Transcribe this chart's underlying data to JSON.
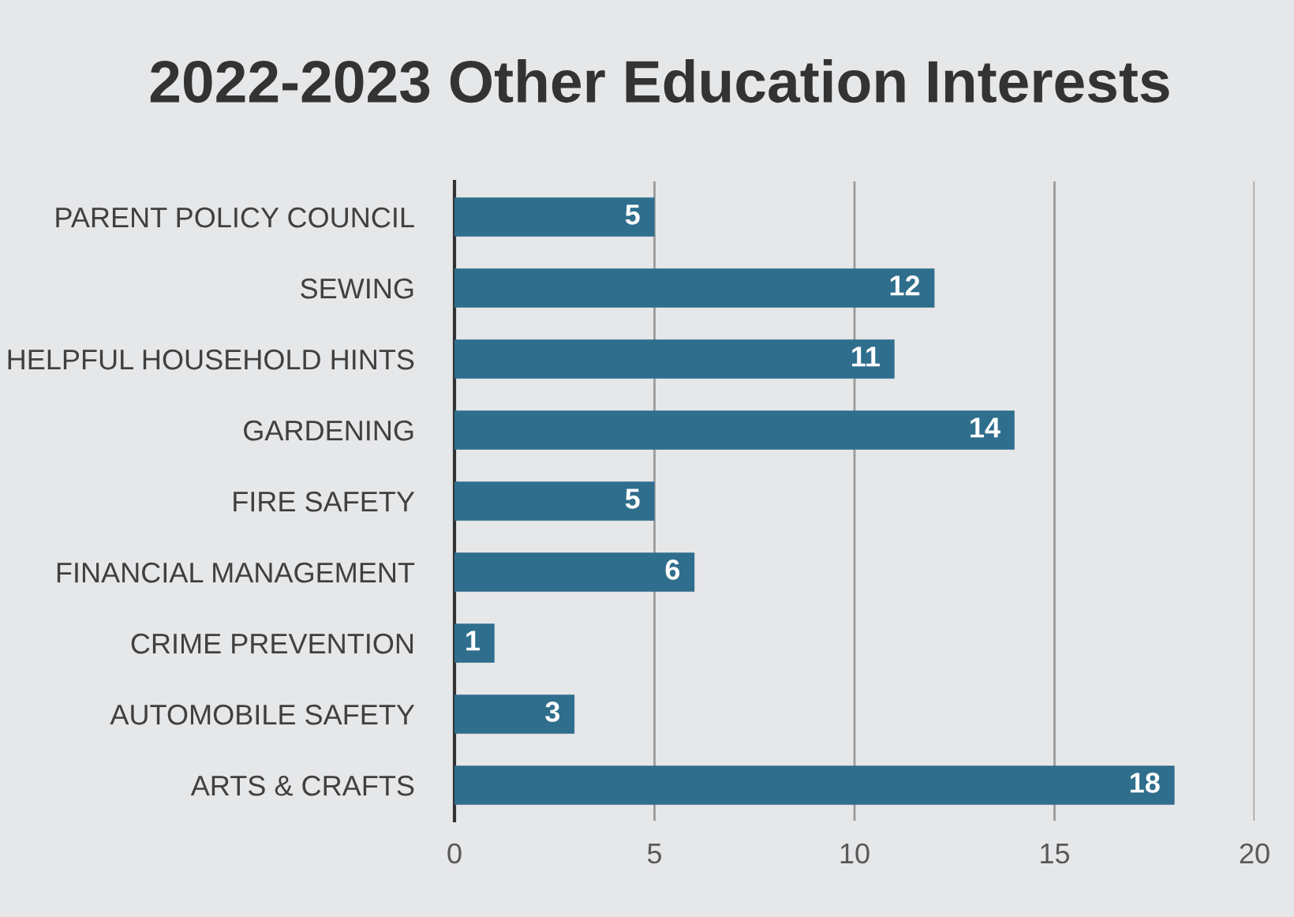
{
  "chart_data": {
    "type": "bar",
    "orientation": "horizontal",
    "title": "2022-2023 Other Education Interests",
    "categories": [
      "PARENT POLICY COUNCIL",
      "SEWING",
      "HELPFUL HOUSEHOLD HINTS",
      "GARDENING",
      "FIRE SAFETY",
      "FINANCIAL MANAGEMENT",
      "CRIME PREVENTION",
      "AUTOMOBILE SAFETY",
      "ARTS & CRAFTS"
    ],
    "values": [
      5,
      12,
      11,
      14,
      5,
      6,
      1,
      3,
      18
    ],
    "color": "#2f6e8c",
    "xlim": [
      0,
      20
    ],
    "xticks": [
      0,
      5,
      10,
      15,
      20
    ],
    "grid": "x",
    "data_labels": true
  }
}
